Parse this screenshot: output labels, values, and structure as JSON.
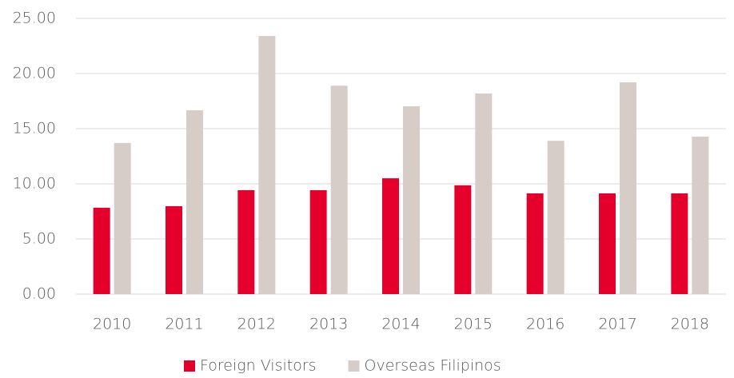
{
  "chart_data": {
    "type": "bar",
    "categories": [
      "2010",
      "2011",
      "2012",
      "2013",
      "2014",
      "2015",
      "2016",
      "2017",
      "2018"
    ],
    "series": [
      {
        "name": "Foreign Visitors",
        "color": "#e4002b",
        "values": [
          7.83,
          7.97,
          9.42,
          9.42,
          10.5,
          9.86,
          9.13,
          9.13,
          9.13
        ]
      },
      {
        "name": "Overseas Filipinos",
        "color": "#d6cdc8",
        "values": [
          13.7,
          16.67,
          23.4,
          18.9,
          17.03,
          18.19,
          13.9,
          19.2,
          14.28
        ]
      }
    ],
    "ylim": [
      0,
      25
    ],
    "yticks": [
      {
        "value": 0,
        "label": "0.00"
      },
      {
        "value": 5,
        "label": "5.00"
      },
      {
        "value": 10,
        "label": "10.00"
      },
      {
        "value": 15,
        "label": "15.00"
      },
      {
        "value": 20,
        "label": "20.00"
      },
      {
        "value": 25,
        "label": "25.00"
      }
    ],
    "grid": true,
    "legend": "bottom"
  }
}
